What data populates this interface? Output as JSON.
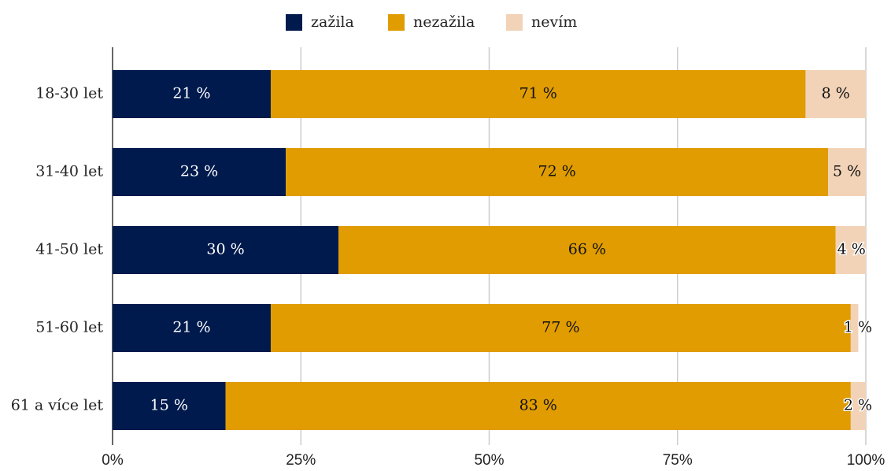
{
  "chart_data": {
    "type": "stacked-bar-horizontal",
    "categories": [
      "18-30 let",
      "31-40 let",
      "41-50 let",
      "51-60 let",
      "61 a více let"
    ],
    "series": [
      {
        "name": "zažila",
        "color": "#001a4d",
        "values": [
          21,
          23,
          30,
          21,
          15
        ],
        "value_labels": [
          "21 %",
          "23 %",
          "30 %",
          "21 %",
          "15 %"
        ]
      },
      {
        "name": "nezažila",
        "color": "#e09c00",
        "values": [
          71,
          72,
          66,
          77,
          83
        ],
        "value_labels": [
          "71 %",
          "72 %",
          "66 %",
          "77 %",
          "83 %"
        ]
      },
      {
        "name": "nevím",
        "color": "#f2d3b8",
        "values": [
          8,
          5,
          4,
          1,
          2
        ],
        "value_labels": [
          "8 %",
          "5 %",
          "4 %",
          "1 %",
          "2 %"
        ]
      }
    ],
    "xlim": [
      0,
      100
    ],
    "xticks": [
      {
        "value": 0,
        "label": "0%"
      },
      {
        "value": 25,
        "label": "25%"
      },
      {
        "value": 50,
        "label": "50%"
      },
      {
        "value": 75,
        "label": "75%"
      },
      {
        "value": 100,
        "label": "100%"
      }
    ],
    "grid": true,
    "legend": "top"
  }
}
